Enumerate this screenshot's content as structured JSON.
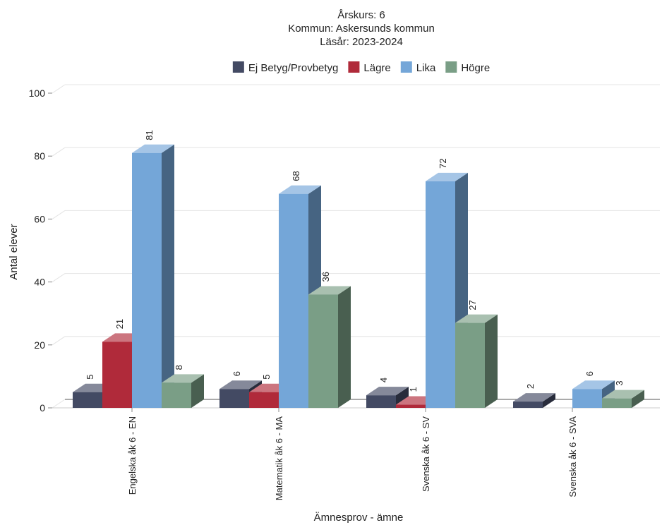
{
  "title_lines": [
    "Årskurs: 6",
    "Kommun: Askersunds kommun",
    "Läsår: 2023-2024"
  ],
  "chart_data": {
    "type": "bar",
    "categories": [
      "Engelska åk 6 - EN",
      "Matematik åk 6 - MA",
      "Svenska åk 6 - SV",
      "Svenska åk 6 - SVA"
    ],
    "series": [
      {
        "name": "Ej Betyg/Provbetyg",
        "color": "#434a63",
        "values": [
          5,
          6,
          4,
          2
        ]
      },
      {
        "name": "Lägre",
        "color": "#b02a3a",
        "values": [
          21,
          5,
          1,
          null
        ]
      },
      {
        "name": "Lika",
        "color": "#74a6d8",
        "values": [
          81,
          68,
          72,
          6
        ]
      },
      {
        "name": "Högre",
        "color": "#7a9e86",
        "values": [
          8,
          36,
          27,
          3
        ]
      }
    ],
    "xlabel": "Ämnesprov - ämne",
    "ylabel": "Antal elever",
    "ylim": [
      0,
      100
    ],
    "yticks": [
      0,
      20,
      40,
      60,
      80,
      100
    ],
    "grid": true,
    "legend_position": "top"
  }
}
